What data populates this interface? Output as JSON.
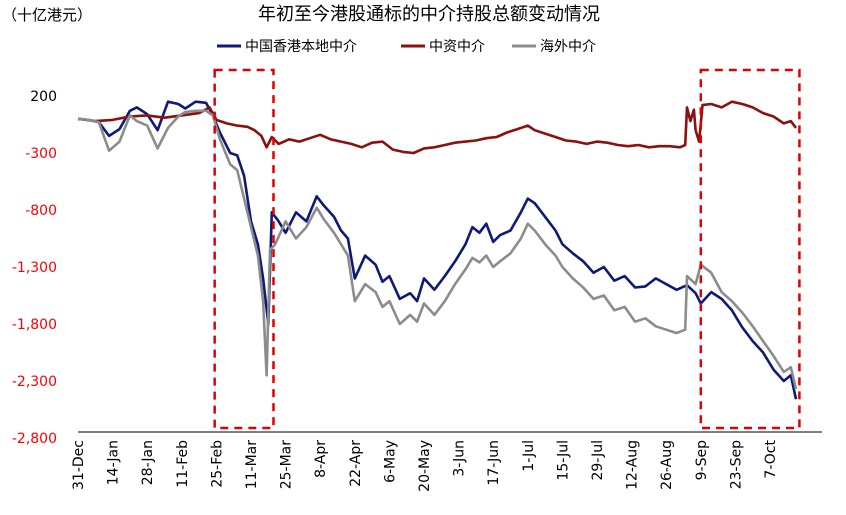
{
  "chart_data": {
    "type": "line",
    "title": "年初至今港股通标的中介持股总额变动情况",
    "unit_label": "（十亿港元）",
    "ylim": [
      -2800,
      450
    ],
    "y_ticks": [
      200,
      -300,
      -800,
      -1300,
      -1800,
      -2300,
      -2800
    ],
    "y_tick_labels": [
      "200",
      "-300",
      "-800",
      "-1,300",
      "-1,800",
      "-2,300",
      "-2,800"
    ],
    "x_tick_labels": [
      "31-Dec",
      "14-Jan",
      "28-Jan",
      "11-Feb",
      "25-Feb",
      "11-Mar",
      "25-Mar",
      "8-Apr",
      "22-Apr",
      "6-May",
      "20-May",
      "3-Jun",
      "17-Jun",
      "1-Jul",
      "15-Jul",
      "29-Jul",
      "12-Aug",
      "26-Aug",
      "9-Sep",
      "23-Sep",
      "7-Oct"
    ],
    "highlight_boxes": [
      {
        "x_start": 3.95,
        "x_end": 5.65
      },
      {
        "x_start": 18.0,
        "x_end": 20.85
      }
    ],
    "series": [
      {
        "name": "中国香港本地中介",
        "color": "#0d1a78",
        "points": [
          [
            0,
            0
          ],
          [
            0.3,
            -10
          ],
          [
            0.6,
            -30
          ],
          [
            0.9,
            -150
          ],
          [
            1.2,
            -90
          ],
          [
            1.5,
            70
          ],
          [
            1.7,
            100
          ],
          [
            2,
            40
          ],
          [
            2.3,
            -100
          ],
          [
            2.6,
            150
          ],
          [
            2.9,
            130
          ],
          [
            3.1,
            90
          ],
          [
            3.4,
            150
          ],
          [
            3.7,
            140
          ],
          [
            3.9,
            30
          ],
          [
            4.1,
            -120
          ],
          [
            4.4,
            -300
          ],
          [
            4.6,
            -320
          ],
          [
            4.8,
            -500
          ],
          [
            5.0,
            -900
          ],
          [
            5.2,
            -1100
          ],
          [
            5.35,
            -1400
          ],
          [
            5.5,
            -1800
          ],
          [
            5.6,
            -820
          ],
          [
            5.8,
            -900
          ],
          [
            6.0,
            -1000
          ],
          [
            6.3,
            -820
          ],
          [
            6.6,
            -900
          ],
          [
            6.9,
            -680
          ],
          [
            7.1,
            -760
          ],
          [
            7.4,
            -860
          ],
          [
            7.6,
            -980
          ],
          [
            7.8,
            -1050
          ],
          [
            8.0,
            -1400
          ],
          [
            8.3,
            -1200
          ],
          [
            8.6,
            -1280
          ],
          [
            8.8,
            -1430
          ],
          [
            9.0,
            -1380
          ],
          [
            9.3,
            -1580
          ],
          [
            9.6,
            -1530
          ],
          [
            9.8,
            -1600
          ],
          [
            10.0,
            -1400
          ],
          [
            10.3,
            -1500
          ],
          [
            10.6,
            -1380
          ],
          [
            10.9,
            -1250
          ],
          [
            11.2,
            -1100
          ],
          [
            11.4,
            -950
          ],
          [
            11.6,
            -1000
          ],
          [
            11.8,
            -920
          ],
          [
            12.0,
            -1080
          ],
          [
            12.2,
            -1020
          ],
          [
            12.5,
            -980
          ],
          [
            12.8,
            -820
          ],
          [
            13.0,
            -700
          ],
          [
            13.2,
            -740
          ],
          [
            13.5,
            -860
          ],
          [
            13.8,
            -980
          ],
          [
            14.0,
            -1100
          ],
          [
            14.3,
            -1180
          ],
          [
            14.6,
            -1250
          ],
          [
            14.9,
            -1350
          ],
          [
            15.2,
            -1300
          ],
          [
            15.5,
            -1420
          ],
          [
            15.8,
            -1380
          ],
          [
            16.1,
            -1480
          ],
          [
            16.4,
            -1470
          ],
          [
            16.7,
            -1400
          ],
          [
            17.0,
            -1450
          ],
          [
            17.3,
            -1500
          ],
          [
            17.6,
            -1460
          ],
          [
            17.85,
            -1530
          ],
          [
            18.0,
            -1620
          ],
          [
            18.3,
            -1520
          ],
          [
            18.6,
            -1580
          ],
          [
            18.9,
            -1680
          ],
          [
            19.2,
            -1830
          ],
          [
            19.5,
            -1950
          ],
          [
            19.8,
            -2050
          ],
          [
            20.1,
            -2200
          ],
          [
            20.4,
            -2300
          ],
          [
            20.6,
            -2250
          ],
          [
            20.75,
            -2460
          ]
        ]
      },
      {
        "name": "中资中介",
        "color": "#8b1010",
        "points": [
          [
            0,
            0
          ],
          [
            0.5,
            -20
          ],
          [
            1,
            -10
          ],
          [
            1.5,
            20
          ],
          [
            2,
            30
          ],
          [
            2.5,
            10
          ],
          [
            3,
            30
          ],
          [
            3.5,
            50
          ],
          [
            3.8,
            100
          ],
          [
            4.0,
            -10
          ],
          [
            4.3,
            -40
          ],
          [
            4.6,
            -60
          ],
          [
            4.9,
            -70
          ],
          [
            5.1,
            -100
          ],
          [
            5.3,
            -150
          ],
          [
            5.45,
            -250
          ],
          [
            5.6,
            -160
          ],
          [
            5.8,
            -220
          ],
          [
            6.1,
            -180
          ],
          [
            6.4,
            -200
          ],
          [
            6.7,
            -170
          ],
          [
            7.0,
            -140
          ],
          [
            7.3,
            -180
          ],
          [
            7.6,
            -200
          ],
          [
            7.9,
            -220
          ],
          [
            8.2,
            -250
          ],
          [
            8.5,
            -210
          ],
          [
            8.8,
            -200
          ],
          [
            9.1,
            -270
          ],
          [
            9.4,
            -290
          ],
          [
            9.7,
            -300
          ],
          [
            10.0,
            -260
          ],
          [
            10.3,
            -250
          ],
          [
            10.6,
            -230
          ],
          [
            10.9,
            -210
          ],
          [
            11.2,
            -200
          ],
          [
            11.5,
            -190
          ],
          [
            11.8,
            -170
          ],
          [
            12.1,
            -160
          ],
          [
            12.4,
            -120
          ],
          [
            12.7,
            -90
          ],
          [
            13.0,
            -60
          ],
          [
            13.2,
            -100
          ],
          [
            13.5,
            -130
          ],
          [
            13.8,
            -160
          ],
          [
            14.1,
            -190
          ],
          [
            14.4,
            -200
          ],
          [
            14.7,
            -220
          ],
          [
            15.0,
            -200
          ],
          [
            15.3,
            -210
          ],
          [
            15.6,
            -230
          ],
          [
            15.9,
            -240
          ],
          [
            16.2,
            -230
          ],
          [
            16.5,
            -250
          ],
          [
            16.8,
            -240
          ],
          [
            17.1,
            -240
          ],
          [
            17.4,
            -250
          ],
          [
            17.55,
            -230
          ],
          [
            17.6,
            100
          ],
          [
            17.7,
            -20
          ],
          [
            17.8,
            80
          ],
          [
            17.85,
            -100
          ],
          [
            17.95,
            -200
          ],
          [
            18.05,
            120
          ],
          [
            18.3,
            130
          ],
          [
            18.6,
            100
          ],
          [
            18.9,
            150
          ],
          [
            19.2,
            130
          ],
          [
            19.5,
            100
          ],
          [
            19.8,
            50
          ],
          [
            20.1,
            20
          ],
          [
            20.4,
            -40
          ],
          [
            20.6,
            -20
          ],
          [
            20.75,
            -80
          ]
        ]
      },
      {
        "name": "海外中介",
        "color": "#8c8c8c",
        "points": [
          [
            0,
            0
          ],
          [
            0.3,
            -10
          ],
          [
            0.6,
            -30
          ],
          [
            0.9,
            -280
          ],
          [
            1.2,
            -200
          ],
          [
            1.5,
            30
          ],
          [
            1.7,
            -20
          ],
          [
            2,
            -60
          ],
          [
            2.3,
            -260
          ],
          [
            2.6,
            -80
          ],
          [
            2.9,
            20
          ],
          [
            3.1,
            60
          ],
          [
            3.4,
            70
          ],
          [
            3.7,
            70
          ],
          [
            3.9,
            30
          ],
          [
            4.1,
            -180
          ],
          [
            4.4,
            -400
          ],
          [
            4.6,
            -450
          ],
          [
            4.8,
            -700
          ],
          [
            5.0,
            -950
          ],
          [
            5.2,
            -1200
          ],
          [
            5.35,
            -1600
          ],
          [
            5.45,
            -2250
          ],
          [
            5.55,
            -1150
          ],
          [
            5.7,
            -1100
          ],
          [
            6.0,
            -900
          ],
          [
            6.3,
            -1050
          ],
          [
            6.6,
            -950
          ],
          [
            6.9,
            -780
          ],
          [
            7.1,
            -880
          ],
          [
            7.4,
            -1000
          ],
          [
            7.6,
            -1100
          ],
          [
            7.8,
            -1200
          ],
          [
            8.0,
            -1600
          ],
          [
            8.3,
            -1450
          ],
          [
            8.6,
            -1520
          ],
          [
            8.8,
            -1650
          ],
          [
            9.0,
            -1600
          ],
          [
            9.3,
            -1800
          ],
          [
            9.6,
            -1720
          ],
          [
            9.8,
            -1780
          ],
          [
            10.0,
            -1620
          ],
          [
            10.3,
            -1720
          ],
          [
            10.6,
            -1600
          ],
          [
            10.9,
            -1450
          ],
          [
            11.2,
            -1320
          ],
          [
            11.4,
            -1220
          ],
          [
            11.6,
            -1260
          ],
          [
            11.8,
            -1200
          ],
          [
            12.0,
            -1300
          ],
          [
            12.2,
            -1250
          ],
          [
            12.5,
            -1180
          ],
          [
            12.8,
            -1050
          ],
          [
            13.0,
            -920
          ],
          [
            13.2,
            -980
          ],
          [
            13.5,
            -1100
          ],
          [
            13.8,
            -1200
          ],
          [
            14.0,
            -1300
          ],
          [
            14.3,
            -1400
          ],
          [
            14.6,
            -1480
          ],
          [
            14.9,
            -1580
          ],
          [
            15.2,
            -1550
          ],
          [
            15.5,
            -1680
          ],
          [
            15.8,
            -1650
          ],
          [
            16.1,
            -1780
          ],
          [
            16.4,
            -1750
          ],
          [
            16.7,
            -1820
          ],
          [
            17.0,
            -1850
          ],
          [
            17.3,
            -1880
          ],
          [
            17.55,
            -1850
          ],
          [
            17.6,
            -1380
          ],
          [
            17.85,
            -1450
          ],
          [
            18.0,
            -1280
          ],
          [
            18.3,
            -1350
          ],
          [
            18.6,
            -1520
          ],
          [
            18.9,
            -1600
          ],
          [
            19.2,
            -1700
          ],
          [
            19.5,
            -1820
          ],
          [
            19.8,
            -1950
          ],
          [
            20.1,
            -2080
          ],
          [
            20.4,
            -2220
          ],
          [
            20.6,
            -2180
          ],
          [
            20.75,
            -2370
          ]
        ]
      }
    ]
  }
}
